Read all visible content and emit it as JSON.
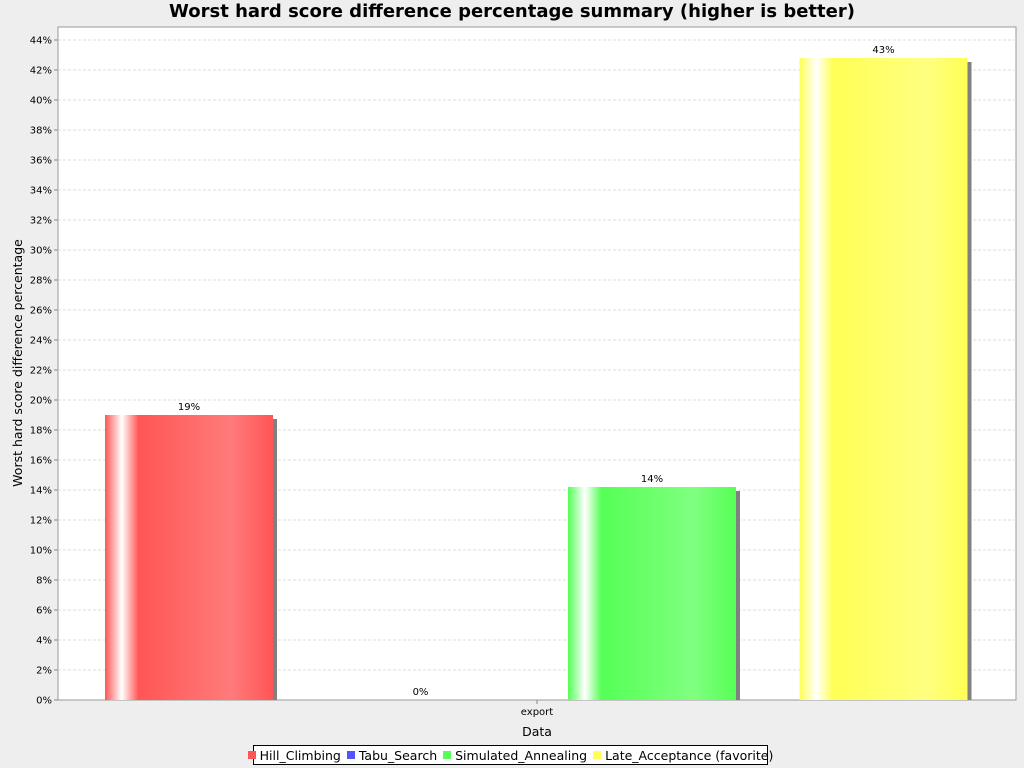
{
  "chart_data": {
    "type": "bar",
    "title": "Worst hard score difference percentage summary (higher is better)",
    "xlabel": "Data",
    "ylabel": "Worst hard score difference percentage",
    "categories": [
      "export"
    ],
    "series": [
      {
        "name": "Hill_Climbing",
        "values": [
          19
        ],
        "label": "19%",
        "color": "#ff5555"
      },
      {
        "name": "Tabu_Search",
        "values": [
          0
        ],
        "label": "0%",
        "color": "#5555ff"
      },
      {
        "name": "Simulated_Annealing",
        "values": [
          14.2
        ],
        "label": "14%",
        "color": "#55ff55"
      },
      {
        "name": "Late_Acceptance (favorite)",
        "values": [
          42.8
        ],
        "label": "43%",
        "color": "#ffff55"
      }
    ],
    "ylim": [
      0,
      45
    ],
    "yticks": [
      "0%",
      "2%",
      "4%",
      "6%",
      "8%",
      "10%",
      "12%",
      "14%",
      "16%",
      "18%",
      "20%",
      "22%",
      "24%",
      "26%",
      "28%",
      "30%",
      "32%",
      "34%",
      "36%",
      "38%",
      "40%",
      "42%",
      "44%"
    ],
    "grid": true,
    "legend": "bottom"
  }
}
